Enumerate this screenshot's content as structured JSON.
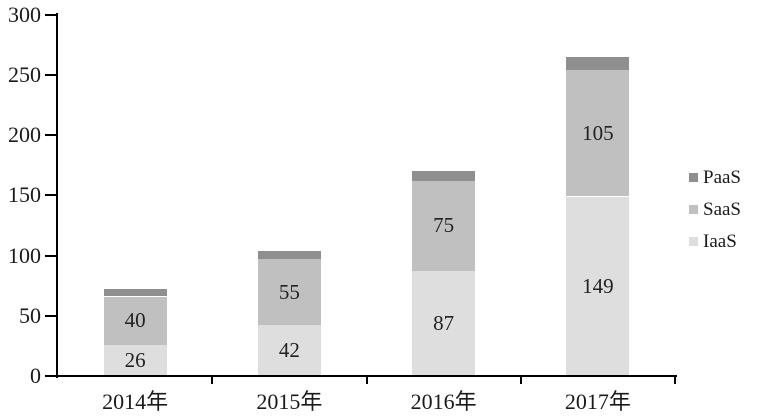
{
  "chart_data": {
    "type": "bar",
    "stacked": true,
    "title": "",
    "categories": [
      "2014年",
      "2015年",
      "2016年",
      "2017年"
    ],
    "series": [
      {
        "name": "IaaS",
        "values": [
          26,
          42,
          87,
          149
        ],
        "color": "#dedede",
        "labels_visible": true
      },
      {
        "name": "SaaS",
        "values": [
          40,
          55,
          75,
          105
        ],
        "color": "#c0c0c0",
        "labels_visible": true
      },
      {
        "name": "PaaS",
        "values": [
          6,
          7,
          8,
          11
        ],
        "color": "#8f8f8f",
        "labels_visible": false
      }
    ],
    "xlabel": "",
    "ylabel": "",
    "ylim": [
      0,
      300
    ],
    "yticks": [
      0,
      50,
      100,
      150,
      200,
      250,
      300
    ],
    "grid": false,
    "legend": {
      "position": "right",
      "entries": [
        "PaaS",
        "SaaS",
        "IaaS"
      ]
    },
    "axis_color": "#000000",
    "text_color": "#1a1a1a"
  }
}
